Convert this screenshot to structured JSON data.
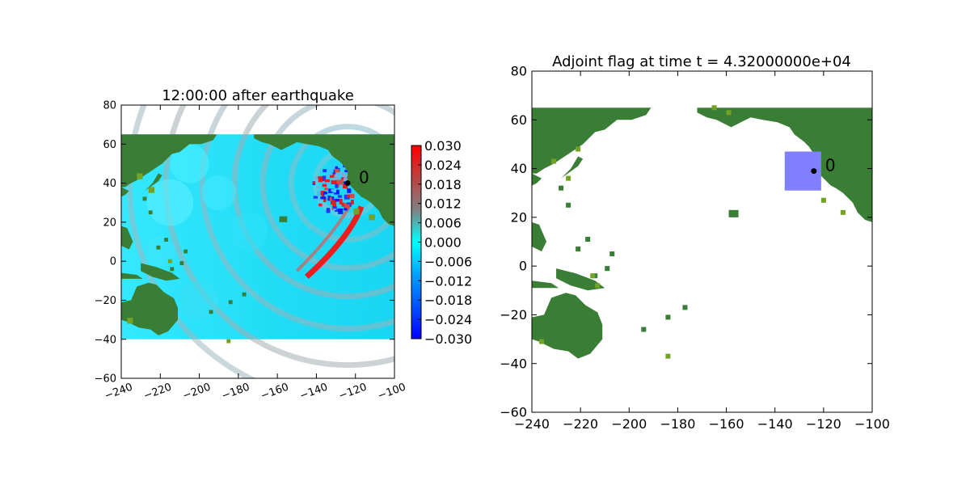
{
  "chart_data": [
    {
      "type": "heatmap",
      "title": "12:00:00 after earthquake",
      "xlabel": "",
      "ylabel": "",
      "xlim": [
        -240,
        -100
      ],
      "ylim": [
        -60,
        80
      ],
      "xticks": [
        "−240",
        "−220",
        "−200",
        "−180",
        "−160",
        "−140",
        "−120",
        "−100"
      ],
      "yticks": [
        "−60",
        "−40",
        "−20",
        "0",
        "20",
        "40",
        "60",
        "80"
      ],
      "domain": {
        "lon": [
          -240,
          -100
        ],
        "lat": [
          -40,
          65
        ]
      },
      "grid": false,
      "colorbar": {
        "range": [
          -0.03,
          0.03
        ],
        "colormap": [
          "#0000ff",
          "#00ffff",
          "#808080",
          "#ff0000"
        ],
        "ticks": [
          "−0.030",
          "−0.024",
          "−0.018",
          "−0.012",
          "−0.006",
          "0.000",
          "0.006",
          "0.012",
          "0.018",
          "0.024",
          "0.030"
        ]
      },
      "marker": {
        "label": "0",
        "lon": -124,
        "lat": 40
      },
      "land_color": "#3a7d35"
    },
    {
      "type": "heatmap",
      "title": "Adjoint flag at time t = 4.32000000e+04",
      "xlabel": "",
      "ylabel": "",
      "xlim": [
        -240,
        -100
      ],
      "ylim": [
        -60,
        80
      ],
      "xticks": [
        "−240",
        "−220",
        "−200",
        "−180",
        "−160",
        "−140",
        "−120",
        "−100"
      ],
      "yticks": [
        "−60",
        "−40",
        "−20",
        "0",
        "20",
        "40",
        "60",
        "80"
      ],
      "grid": false,
      "flag_region": {
        "lon": [
          -136,
          -121
        ],
        "lat": [
          31,
          47
        ],
        "color": "#8080ff"
      },
      "marker": {
        "label": "0",
        "lon": -124,
        "lat": 39
      },
      "land_color": "#3a7d35"
    }
  ]
}
